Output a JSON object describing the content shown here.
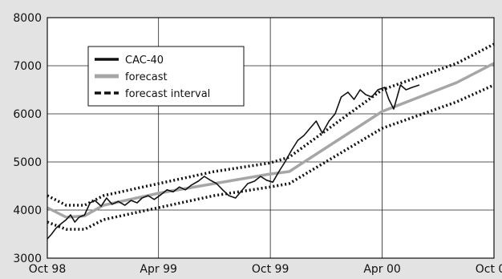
{
  "chart_data": {
    "type": "line",
    "title": "",
    "xlabel": "",
    "ylabel": "",
    "x_axis": {
      "min": "1998-10-01",
      "max": "2000-10-01",
      "ticks": [
        {
          "date": "1998-10-01",
          "label": "Oct 98"
        },
        {
          "date": "1999-04-01",
          "label": "Apr 99"
        },
        {
          "date": "1999-10-01",
          "label": "Oct 99"
        },
        {
          "date": "2000-04-01",
          "label": "Apr 00"
        },
        {
          "date": "2000-10-01",
          "label": "Oct 00"
        }
      ]
    },
    "y_axis": {
      "min": 3000,
      "max": 8000,
      "ticks": [
        3000,
        4000,
        5000,
        6000,
        7000,
        8000
      ]
    },
    "grid": true,
    "legend_position": "top-left",
    "series": [
      {
        "name": "CAC-40",
        "color": "#111111",
        "style": "solid-thin",
        "points": [
          [
            "1998-10-01",
            3400
          ],
          [
            "1998-10-08",
            3500
          ],
          [
            "1998-10-15",
            3620
          ],
          [
            "1998-10-22",
            3700
          ],
          [
            "1998-11-01",
            3800
          ],
          [
            "1998-11-08",
            3900
          ],
          [
            "1998-11-15",
            3750
          ],
          [
            "1998-11-22",
            3850
          ],
          [
            "1998-12-01",
            3900
          ],
          [
            "1998-12-10",
            4150
          ],
          [
            "1998-12-18",
            4200
          ],
          [
            "1998-12-28",
            4080
          ],
          [
            "1999-01-06",
            4250
          ],
          [
            "1999-01-15",
            4120
          ],
          [
            "1999-01-25",
            4180
          ],
          [
            "1999-02-05",
            4100
          ],
          [
            "1999-02-15",
            4200
          ],
          [
            "1999-02-25",
            4150
          ],
          [
            "1999-03-05",
            4250
          ],
          [
            "1999-03-15",
            4300
          ],
          [
            "1999-03-25",
            4220
          ],
          [
            "1999-04-05",
            4320
          ],
          [
            "1999-04-15",
            4420
          ],
          [
            "1999-04-25",
            4380
          ],
          [
            "1999-05-05",
            4480
          ],
          [
            "1999-05-15",
            4420
          ],
          [
            "1999-05-25",
            4520
          ],
          [
            "1999-06-05",
            4600
          ],
          [
            "1999-06-15",
            4700
          ],
          [
            "1999-06-25",
            4620
          ],
          [
            "1999-07-05",
            4550
          ],
          [
            "1999-07-15",
            4420
          ],
          [
            "1999-07-25",
            4300
          ],
          [
            "1999-08-05",
            4250
          ],
          [
            "1999-08-15",
            4400
          ],
          [
            "1999-08-25",
            4550
          ],
          [
            "1999-09-05",
            4600
          ],
          [
            "1999-09-15",
            4700
          ],
          [
            "1999-09-25",
            4620
          ],
          [
            "1999-10-05",
            4580
          ],
          [
            "1999-10-15",
            4800
          ],
          [
            "1999-10-25",
            5000
          ],
          [
            "1999-11-05",
            5250
          ],
          [
            "1999-11-15",
            5450
          ],
          [
            "1999-11-25",
            5550
          ],
          [
            "1999-12-05",
            5700
          ],
          [
            "1999-12-15",
            5850
          ],
          [
            "1999-12-25",
            5600
          ],
          [
            "2000-01-05",
            5850
          ],
          [
            "2000-01-15",
            6000
          ],
          [
            "2000-01-25",
            6350
          ],
          [
            "2000-02-05",
            6450
          ],
          [
            "2000-02-15",
            6300
          ],
          [
            "2000-02-25",
            6500
          ],
          [
            "2000-03-05",
            6400
          ],
          [
            "2000-03-15",
            6350
          ],
          [
            "2000-03-25",
            6500
          ],
          [
            "2000-04-05",
            6550
          ],
          [
            "2000-04-12",
            6300
          ],
          [
            "2000-04-20",
            6100
          ],
          [
            "2000-05-01",
            6600
          ],
          [
            "2000-05-10",
            6500
          ],
          [
            "2000-05-20",
            6550
          ],
          [
            "2000-06-01",
            6600
          ]
        ]
      },
      {
        "name": "forecast",
        "color": "#a6a6a6",
        "style": "solid-thick",
        "points": [
          [
            "1998-10-01",
            4050
          ],
          [
            "1998-11-01",
            3850
          ],
          [
            "1998-12-01",
            3880
          ],
          [
            "1999-01-01",
            4100
          ],
          [
            "1999-04-01",
            4350
          ],
          [
            "1999-07-01",
            4550
          ],
          [
            "1999-10-01",
            4750
          ],
          [
            "1999-11-01",
            4800
          ],
          [
            "2000-04-01",
            6050
          ],
          [
            "2000-08-01",
            6650
          ],
          [
            "2000-10-01",
            7050
          ]
        ]
      },
      {
        "name": "forecast interval",
        "color": "#111111",
        "style": "dotted",
        "upper": [
          [
            "1998-10-01",
            4300
          ],
          [
            "1998-11-01",
            4100
          ],
          [
            "1998-12-01",
            4100
          ],
          [
            "1999-01-01",
            4300
          ],
          [
            "1999-04-01",
            4550
          ],
          [
            "1999-07-01",
            4800
          ],
          [
            "1999-10-01",
            4980
          ],
          [
            "1999-11-01",
            5100
          ],
          [
            "2000-04-01",
            6500
          ],
          [
            "2000-08-01",
            7050
          ],
          [
            "2000-10-01",
            7450
          ]
        ],
        "lower": [
          [
            "1998-10-01",
            3750
          ],
          [
            "1998-11-01",
            3600
          ],
          [
            "1998-12-01",
            3600
          ],
          [
            "1999-01-01",
            3800
          ],
          [
            "1999-04-01",
            4050
          ],
          [
            "1999-07-01",
            4300
          ],
          [
            "1999-10-01",
            4480
          ],
          [
            "1999-11-01",
            4550
          ],
          [
            "2000-04-01",
            5700
          ],
          [
            "2000-08-01",
            6250
          ],
          [
            "2000-10-01",
            6600
          ]
        ]
      }
    ]
  }
}
